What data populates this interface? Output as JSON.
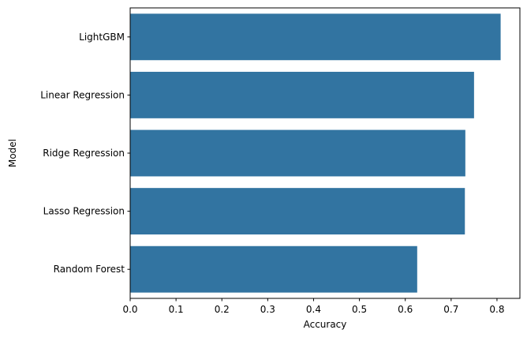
{
  "chart_data": {
    "type": "bar",
    "orientation": "horizontal",
    "categories": [
      "LightGBM",
      "Linear Regression",
      "Ridge Regression",
      "Lasso Regression",
      "Random Forest"
    ],
    "values": [
      0.808,
      0.75,
      0.731,
      0.73,
      0.626
    ],
    "xlabel": "Accuracy",
    "ylabel": "Model",
    "xlim": [
      0,
      0.85
    ],
    "xticks": [
      0.0,
      0.1,
      0.2,
      0.3,
      0.4,
      0.5,
      0.6,
      0.7,
      0.8
    ],
    "xtick_labels": [
      "0.0",
      "0.1",
      "0.2",
      "0.3",
      "0.4",
      "0.5",
      "0.6",
      "0.7",
      "0.8"
    ],
    "bar_color": "#3274a1",
    "grid": false,
    "legend": "none"
  }
}
